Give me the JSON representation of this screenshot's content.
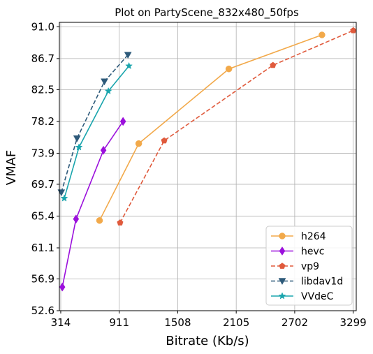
{
  "chart_data": {
    "type": "line",
    "title": "Plot on PartyScene_832x480_50fps",
    "xlabel": "Bitrate (Kb/s)",
    "ylabel": "VMAF",
    "xlim": [
      300,
      3330
    ],
    "ylim": [
      52.6,
      91.6
    ],
    "xticks": [
      314,
      911,
      1508,
      2105,
      2702,
      3299
    ],
    "xtick_labels": [
      "314",
      "911",
      "1508",
      "2105",
      "2702",
      "3299"
    ],
    "yticks": [
      52.6,
      56.9,
      61.1,
      65.4,
      69.7,
      73.9,
      78.2,
      82.5,
      86.7,
      91.0
    ],
    "ytick_labels": [
      "52.6",
      "56.9",
      "61.1",
      "65.4",
      "69.7",
      "73.9",
      "78.2",
      "82.5",
      "86.7",
      "91.0"
    ],
    "grid": true,
    "legend_position": "bottom-right",
    "series": [
      {
        "name": "h264",
        "color": "#f2a94a",
        "dash": "solid",
        "marker": "circle",
        "x": [
          710,
          1110,
          2030,
          2980
        ],
        "y": [
          64.8,
          75.2,
          85.3,
          89.9
        ]
      },
      {
        "name": "hevc",
        "color": "#9b10dc",
        "dash": "solid",
        "marker": "diamond",
        "x": [
          330,
          470,
          750,
          950
        ],
        "y": [
          55.8,
          65.0,
          74.3,
          78.2
        ]
      },
      {
        "name": "vp9",
        "color": "#e05a3c",
        "dash": "dashed",
        "marker": "pentagon",
        "x": [
          920,
          1370,
          2480,
          3300
        ],
        "y": [
          64.5,
          75.6,
          85.8,
          90.5
        ]
      },
      {
        "name": "libdav1d",
        "color": "#2e5a7a",
        "dash": "dashed",
        "marker": "triangle-down",
        "x": [
          320,
          480,
          760,
          1000
        ],
        "y": [
          68.6,
          75.9,
          83.6,
          87.2
        ]
      },
      {
        "name": "VVdeC",
        "color": "#1aa5ad",
        "dash": "solid",
        "marker": "star",
        "x": [
          350,
          500,
          800,
          1010
        ],
        "y": [
          67.8,
          74.7,
          82.3,
          85.7
        ]
      }
    ]
  }
}
